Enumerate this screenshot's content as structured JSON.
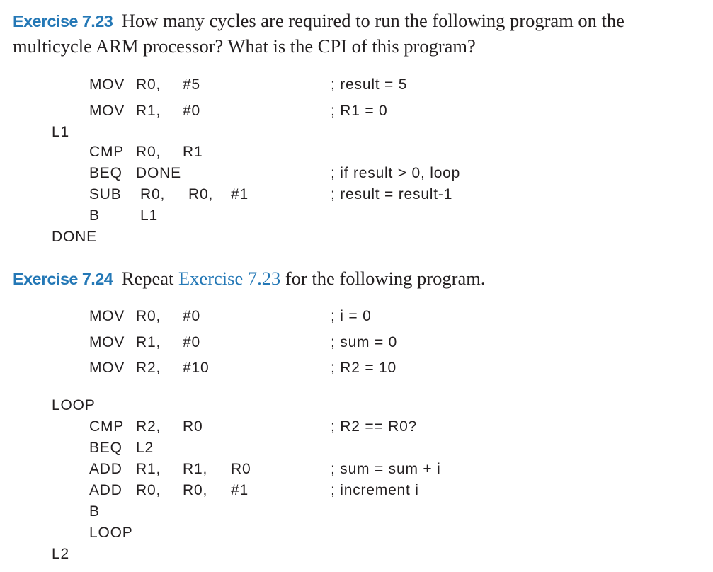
{
  "exercise_723": {
    "number": "Exercise 7.23",
    "line1": "How many cycles are required to run the following program on the",
    "line2": "multicycle ARM processor? What is the CPI of this program?"
  },
  "program_723": [
    {
      "label": "",
      "op": "MOV",
      "args": [
        "R0,",
        "#5"
      ],
      "comment": "; result = 5"
    },
    {
      "label": "",
      "op": "MOV",
      "args": [
        "R1,",
        "#0"
      ],
      "comment": "; R1 = 0"
    },
    {
      "label": "L1",
      "op": "",
      "args": [],
      "comment": ""
    },
    {
      "label": "",
      "op": "CMP",
      "args": [
        "R0,",
        "R1"
      ],
      "comment": ""
    },
    {
      "label": "",
      "op": "BEQ",
      "args": [
        "DONE"
      ],
      "comment": "; if result > 0, loop"
    },
    {
      "label": "",
      "op": "SUB",
      "args": [
        "R0,",
        "R0,",
        "#1"
      ],
      "comment": "; result = result-1"
    },
    {
      "label": "",
      "op": "B",
      "args": [
        "L1"
      ],
      "comment": ""
    },
    {
      "label": "DONE",
      "op": "",
      "args": [],
      "comment": ""
    }
  ],
  "exercise_724": {
    "number": "Exercise 7.24",
    "text_before": "Repeat",
    "reference": "Exercise 7.23",
    "text_after": "for the following program."
  },
  "program_724": [
    {
      "label": "",
      "op": "MOV",
      "args": [
        "R0,",
        "#0"
      ],
      "comment": "; i = 0"
    },
    {
      "label": "",
      "op": "MOV",
      "args": [
        "R1,",
        "#0"
      ],
      "comment": "; sum = 0"
    },
    {
      "label": "",
      "op": "MOV",
      "args": [
        "R2,",
        "#10"
      ],
      "comment": "; R2 = 10"
    },
    {
      "label": "LOOP",
      "op": "",
      "args": [],
      "comment": ""
    },
    {
      "label": "",
      "op": "CMP",
      "args": [
        "R2,",
        "R0"
      ],
      "comment": "; R2 == R0?"
    },
    {
      "label": "",
      "op": "BEQ",
      "args": [
        "L2"
      ],
      "comment": ""
    },
    {
      "label": "",
      "op": "ADD",
      "args": [
        "R1,",
        "R1,",
        "R0"
      ],
      "comment": "; sum = sum + i"
    },
    {
      "label": "",
      "op": "ADD",
      "args": [
        "R0,",
        "R0,",
        "#1"
      ],
      "comment": "; increment i"
    },
    {
      "label": "",
      "op": "B",
      "args": [],
      "comment": ""
    },
    {
      "label": "",
      "op": "LOOP",
      "args": [],
      "comment": ""
    },
    {
      "label": "L2",
      "op": "",
      "args": [],
      "comment": ""
    }
  ]
}
